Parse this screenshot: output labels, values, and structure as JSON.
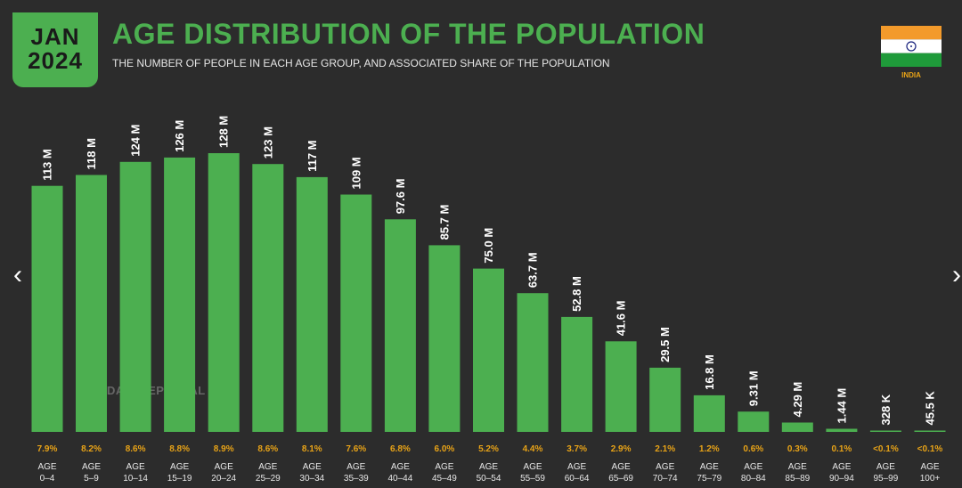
{
  "header": {
    "month": "JAN",
    "year": "2024",
    "title": "AGE DISTRIBUTION OF THE POPULATION",
    "subtitle": "THE NUMBER OF PEOPLE IN EACH AGE GROUP, AND ASSOCIATED SHARE OF THE POPULATION",
    "country": "INDIA"
  },
  "watermark": "DATAREPORTAL",
  "nav": {
    "prev": "‹",
    "next": "›"
  },
  "colors": {
    "bar": "#4caf50",
    "share": "#e8a317",
    "label": "#ffffff",
    "axis_text": "#e6e6e6"
  },
  "chart_data": {
    "type": "bar",
    "title": "AGE DISTRIBUTION OF THE POPULATION",
    "xlabel": "",
    "ylabel": "",
    "ylim": [
      0,
      128
    ],
    "unit": "millions",
    "categories": [
      "0–4",
      "5–9",
      "10–14",
      "15–19",
      "20–24",
      "25–29",
      "30–34",
      "35–39",
      "40–44",
      "45–49",
      "50–54",
      "55–59",
      "60–64",
      "65–69",
      "70–74",
      "75–79",
      "80–84",
      "85–89",
      "90–94",
      "95–99",
      "100+"
    ],
    "category_prefix": "AGE",
    "values": [
      113,
      118,
      124,
      126,
      128,
      123,
      117,
      109,
      97.6,
      85.7,
      75.0,
      63.7,
      52.8,
      41.6,
      29.5,
      16.8,
      9.31,
      4.29,
      1.44,
      0.328,
      0.0455
    ],
    "value_labels": [
      "113 M",
      "118 M",
      "124 M",
      "126 M",
      "128 M",
      "123 M",
      "117 M",
      "109 M",
      "97.6 M",
      "85.7 M",
      "75.0 M",
      "63.7 M",
      "52.8 M",
      "41.6 M",
      "29.5 M",
      "16.8 M",
      "9.31 M",
      "4.29 M",
      "1.44 M",
      "328 K",
      "45.5 K"
    ],
    "shares": [
      "7.9%",
      "8.2%",
      "8.6%",
      "8.8%",
      "8.9%",
      "8.6%",
      "8.1%",
      "7.6%",
      "6.8%",
      "6.0%",
      "5.2%",
      "4.4%",
      "3.7%",
      "2.9%",
      "2.1%",
      "1.2%",
      "0.6%",
      "0.3%",
      "0.1%",
      "<0.1%",
      "<0.1%"
    ]
  }
}
